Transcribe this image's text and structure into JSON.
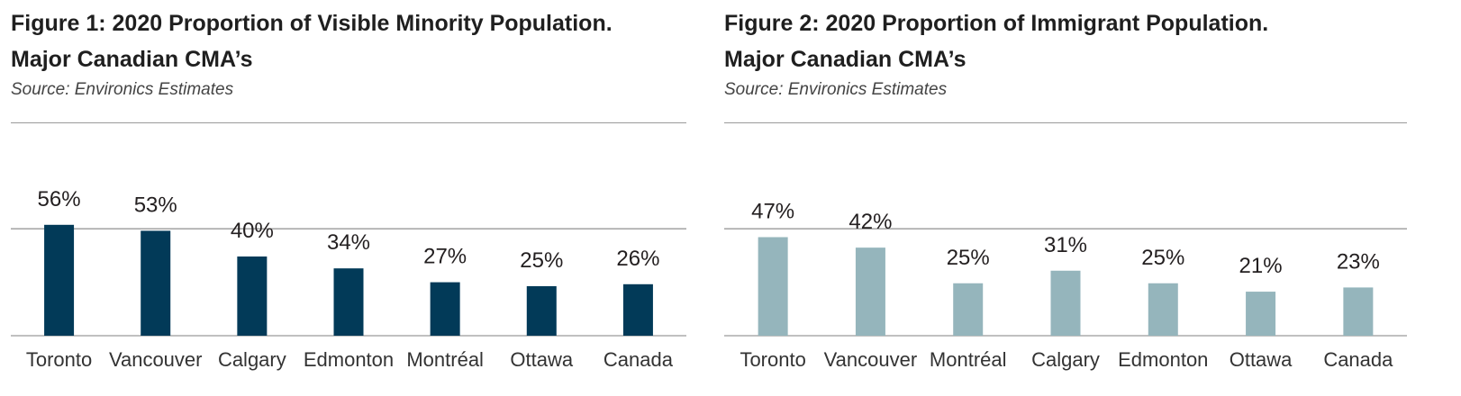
{
  "chart_data": [
    {
      "type": "bar",
      "title": "Figure 1: 2020 Proportion of Visible Minority Population. Major Canadian CMA’s",
      "title_lines": [
        "Figure 1: 2020 Proportion of Visible Minority Population.",
        "Major Canadian CMA’s"
      ],
      "source": "Source: Environics Estimates",
      "categories": [
        "Toronto",
        "Vancouver",
        "Calgary",
        "Edmonton",
        "Montréal",
        "Ottawa",
        "Canada"
      ],
      "values": [
        56,
        53,
        40,
        34,
        27,
        25,
        26
      ],
      "labels": [
        "56%",
        "53%",
        "40%",
        "34%",
        "27%",
        "25%",
        "26%"
      ],
      "xlabel": "",
      "ylabel": "",
      "ylim": [
        0,
        60
      ],
      "gridline_value": 54,
      "grid": true,
      "color": "#023a58"
    },
    {
      "type": "bar",
      "title": "Figure 2: 2020 Proportion of Immigrant Population. Major Canadian CMA’s",
      "title_lines": [
        "Figure 2: 2020 Proportion of Immigrant Population.",
        "Major Canadian CMA’s"
      ],
      "source": "Source: Environics Estimates",
      "categories": [
        "Toronto",
        "Vancouver",
        "Montréal",
        "Calgary",
        "Edmonton",
        "Ottawa",
        "Canada"
      ],
      "values": [
        47,
        42,
        25,
        31,
        25,
        21,
        23
      ],
      "labels": [
        "47%",
        "42%",
        "25%",
        "31%",
        "25%",
        "21%",
        "23%"
      ],
      "xlabel": "",
      "ylabel": "",
      "ylim": [
        0,
        55
      ],
      "gridline_value": 51,
      "grid": true,
      "color": "#95b5bc"
    }
  ]
}
